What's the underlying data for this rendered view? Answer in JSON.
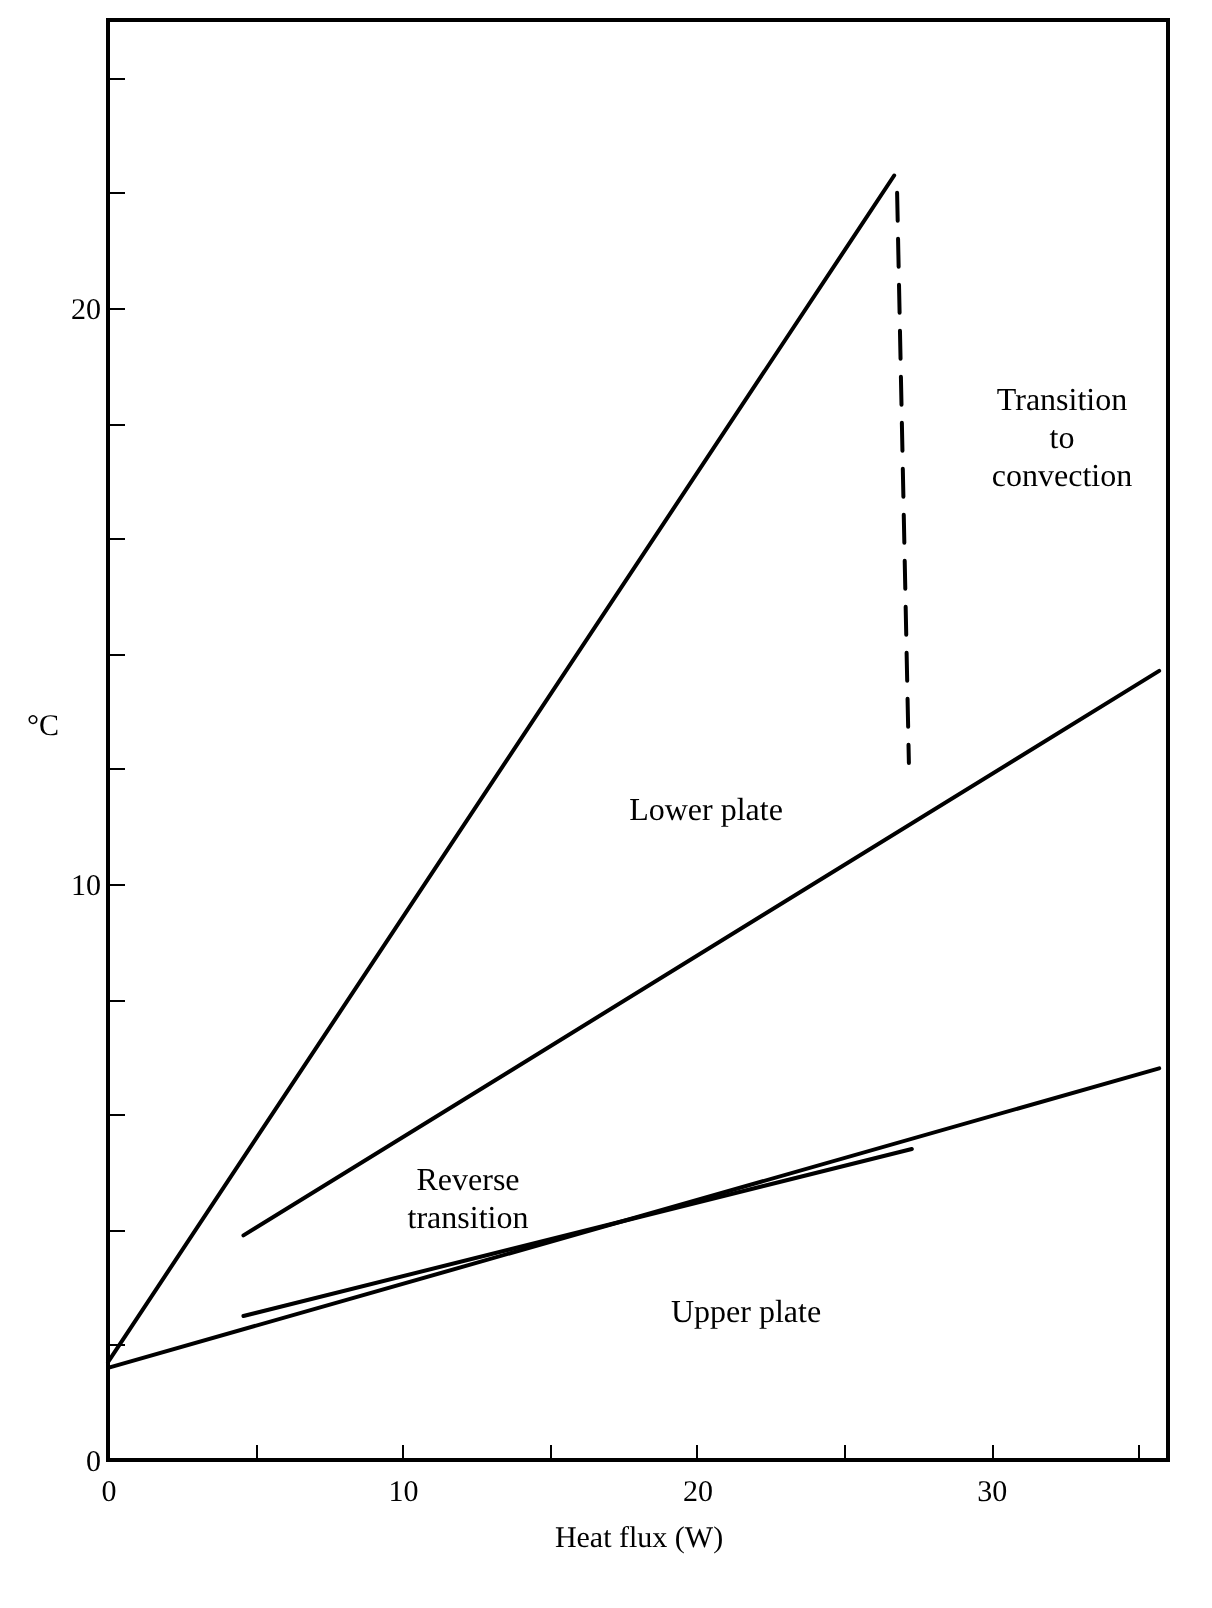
{
  "chart_data": {
    "type": "line",
    "xlabel": "Heat flux (W)",
    "ylabel": "°C",
    "xlim": [
      0,
      36
    ],
    "ylim": [
      0,
      25
    ],
    "xticks": [
      0,
      {
        "value": 5,
        "label": null
      },
      10,
      {
        "value": 15,
        "label": null
      },
      20,
      {
        "value": 25,
        "label": null
      },
      30,
      {
        "value": 35,
        "label": null
      }
    ],
    "yticks": [
      0,
      {
        "value": 2,
        "label": null
      },
      {
        "value": 4,
        "label": null
      },
      {
        "value": 6,
        "label": null
      },
      {
        "value": 8,
        "label": null
      },
      10,
      {
        "value": 12,
        "label": null
      },
      {
        "value": 14,
        "label": null
      },
      {
        "value": 16,
        "label": null
      },
      {
        "value": 18,
        "label": null
      },
      20,
      {
        "value": 22,
        "label": null
      },
      {
        "value": 24,
        "label": null
      }
    ],
    "marker": "none",
    "series": [
      {
        "color": "#000000",
        "x": [
          0,
          26.7
        ],
        "values": [
          1.7,
          22.3
        ],
        "line_style": "solid"
      },
      {
        "color": "#000000",
        "x": [
          26.8,
          27.2
        ],
        "values": [
          22,
          12.1
        ],
        "line_style": "dashed"
      },
      {
        "color": "#000000",
        "x": [
          4.6,
          35.7
        ],
        "values": [
          3.9,
          13.7
        ],
        "line_style": "solid"
      },
      {
        "color": "#000000",
        "x": [
          0,
          35.7
        ],
        "values": [
          1.6,
          6.8
        ],
        "line_style": "solid"
      },
      {
        "color": "#000000",
        "x": [
          4.6,
          27.3
        ],
        "values": [
          2.5,
          5.4
        ],
        "line_style": "solid"
      }
    ],
    "annotations": [
      "Transition to convection",
      "Lower plate",
      "Reverse transition",
      "Upper plate"
    ]
  }
}
